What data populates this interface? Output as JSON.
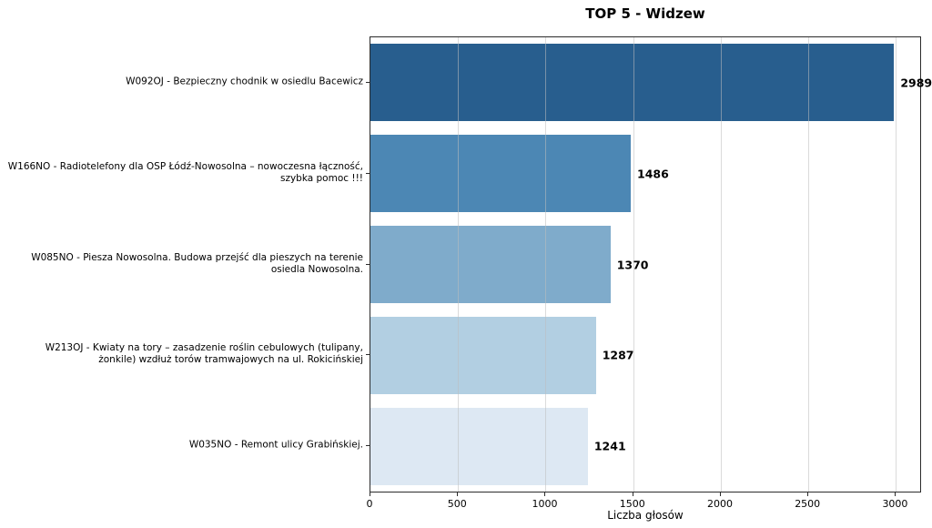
{
  "chart_data": {
    "type": "bar",
    "orientation": "horizontal",
    "title": "TOP 5 - Widzew",
    "xlabel": "Liczba głosów",
    "ylabel": "",
    "categories": [
      "W092OJ - Bezpieczny chodnik w osiedlu Bacewicz",
      "W166NO - Radiotelefony dla OSP Łódź-Nowosolna – nowoczesna łączność, szybka pomoc !!!",
      "W085NO - Piesza Nowosolna. Budowa przejść dla pieszych na terenie osiedla Nowosolna.",
      "W213OJ - Kwiaty na tory – zasadzenie roślin cebulowych (tulipany, żonkile) wzdłuż torów tramwajowych na ul. Rokicińskiej",
      "W035NO - Remont ulicy Grabińskiej."
    ],
    "category_lines": [
      [
        "W092OJ - Bezpieczny chodnik w osiedlu Bacewicz"
      ],
      [
        "W166NO - Radiotelefony dla OSP Łódź-Nowosolna – nowoczesna łączność,",
        "szybka pomoc !!!"
      ],
      [
        "W085NO - Piesza Nowosolna. Budowa przejść dla pieszych na terenie",
        "osiedla Nowosolna."
      ],
      [
        "W213OJ - Kwiaty na tory – zasadzenie roślin cebulowych (tulipany,",
        "żonkile) wzdłuż torów tramwajowych na ul. Rokicińskiej"
      ],
      [
        "W035NO - Remont ulicy Grabińskiej."
      ]
    ],
    "values": [
      2989,
      1486,
      1370,
      1287,
      1241
    ],
    "value_labels": [
      "2989",
      "1486",
      "1370",
      "1287",
      "1241"
    ],
    "bar_colors": [
      "#285E8E",
      "#4C87B4",
      "#7FABCB",
      "#B2CFE2",
      "#DDE8F3"
    ],
    "xticks": [
      0,
      500,
      1000,
      1500,
      2000,
      2500,
      3000
    ],
    "xlim": [
      0,
      3138
    ],
    "grid": "x-on-top",
    "legend": "none",
    "bar_fill_fraction": 0.85
  }
}
